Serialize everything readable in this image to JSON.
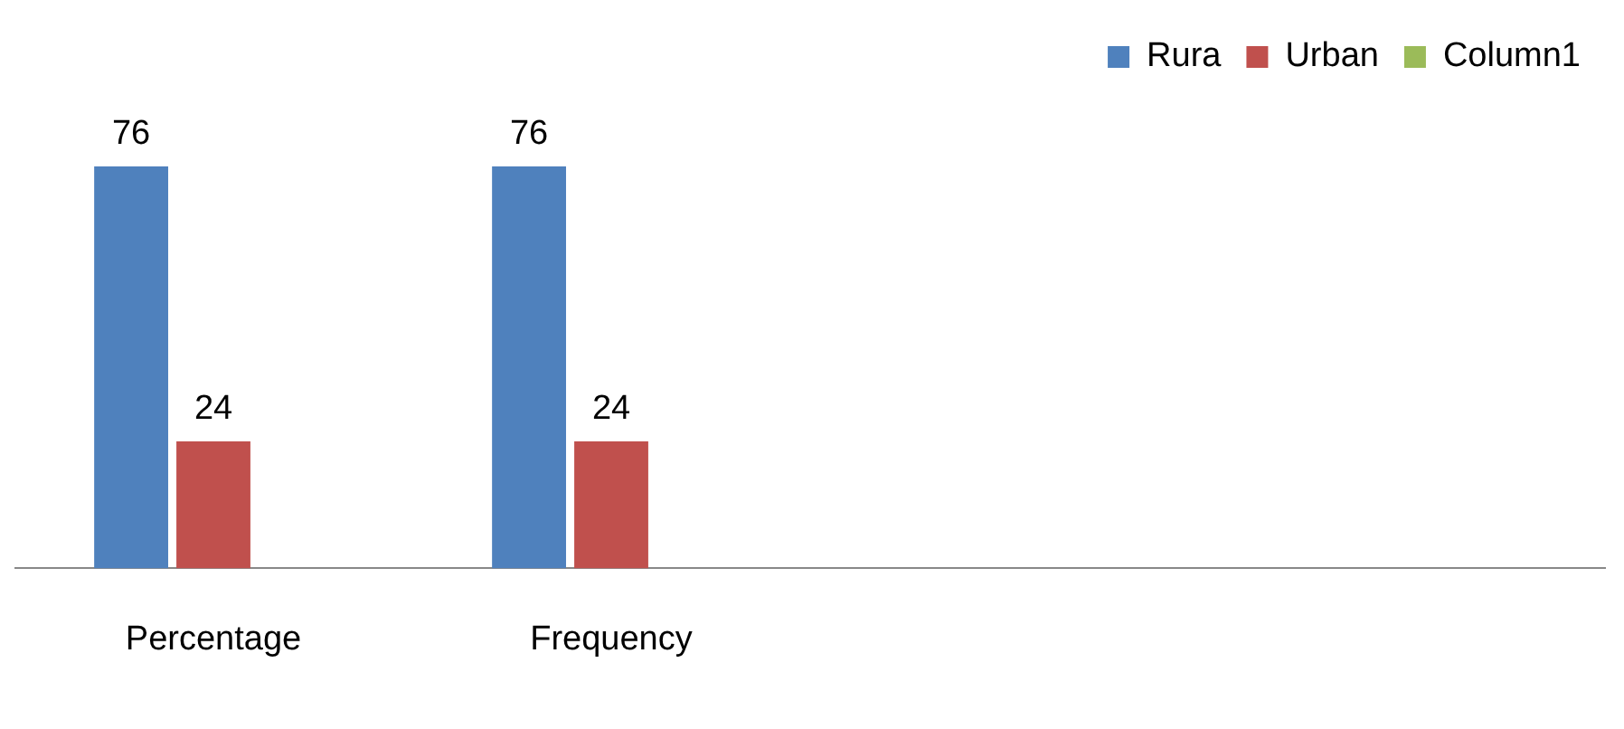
{
  "chart_data": {
    "type": "bar",
    "categories": [
      "Percentage",
      "Frequency",
      null,
      null
    ],
    "series": [
      {
        "name": "Rura",
        "color": "#4f81bd",
        "values": [
          76,
          76,
          null,
          null
        ]
      },
      {
        "name": "Urban",
        "color": "#c0504d",
        "values": [
          24,
          24,
          null,
          null
        ]
      },
      {
        "name": "Column1",
        "color": "#9bbb59",
        "values": [
          null,
          null,
          null,
          null
        ]
      }
    ],
    "data_labels": true,
    "legend": "top right",
    "grid": false,
    "tick_labels": "x"
  }
}
